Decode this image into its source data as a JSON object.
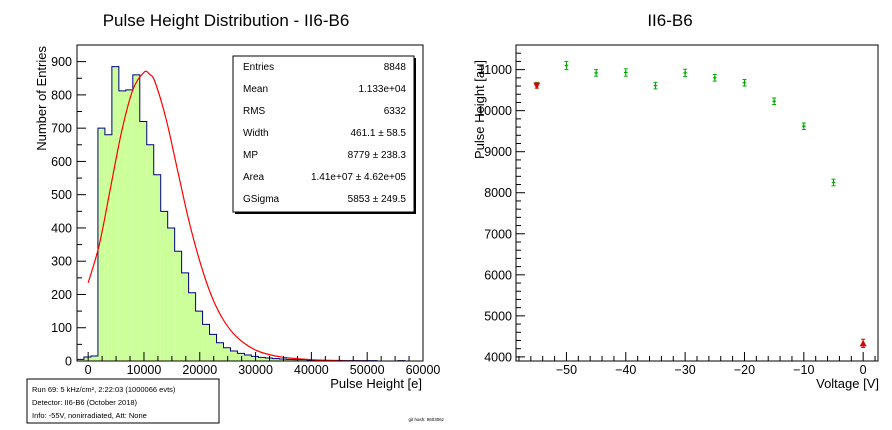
{
  "chart_data": [
    {
      "type": "bar",
      "title": "Pulse Height Distribution - II6-B6",
      "xlabel": "Pulse Height [e]",
      "ylabel": "Number of Entries",
      "xlim": [
        -2000,
        60000
      ],
      "ylim": [
        0,
        950
      ],
      "x_ticks": [
        0,
        10000,
        20000,
        30000,
        40000,
        50000,
        60000
      ],
      "y_ticks": [
        0,
        100,
        200,
        300,
        400,
        500,
        600,
        700,
        800,
        900
      ],
      "bin_width": 1250,
      "bin_start": -2000,
      "values": [
        5,
        12,
        15,
        700,
        680,
        885,
        812,
        815,
        860,
        720,
        650,
        560,
        450,
        400,
        330,
        265,
        205,
        150,
        110,
        80,
        55,
        40,
        30,
        23,
        18,
        14,
        11,
        9,
        7,
        6,
        5,
        4,
        4,
        3,
        3,
        2,
        2,
        2,
        1,
        1,
        1,
        1,
        1,
        0,
        0,
        0,
        1,
        0,
        0
      ],
      "fit": {
        "type": "langaus",
        "x": [
          0,
          2000,
          4000,
          6000,
          8000,
          10000,
          11000,
          12000,
          14000,
          16000,
          18000,
          20000,
          22000,
          24000,
          26000,
          28000,
          30000,
          32000,
          35000,
          40000,
          45000,
          50000
        ],
        "y": [
          235,
          350,
          520,
          690,
          815,
          868,
          862,
          838,
          725,
          575,
          425,
          300,
          200,
          130,
          83,
          53,
          33,
          21,
          11,
          4,
          1,
          0
        ]
      },
      "stats": [
        {
          "label": "Entries",
          "value": "8848"
        },
        {
          "label": "Mean",
          "value": "1.133e+04"
        },
        {
          "label": "RMS",
          "value": "6332"
        },
        {
          "label": "Width",
          "value": "461.1 ± 58.5"
        },
        {
          "label": "MP",
          "value": "8779 ± 238.3"
        },
        {
          "label": "Area",
          "value": "1.41e+07 ± 4.62e+05"
        },
        {
          "label": "GSigma",
          "value": "5853 ± 249.5"
        }
      ],
      "colors": {
        "fill": "#ccff99",
        "outline": "#000080",
        "fit": "#ff0000"
      }
    },
    {
      "type": "scatter",
      "title": "II6-B6",
      "xlabel": "Voltage [V]",
      "ylabel": "Pulse Height [au]",
      "xlim": [
        -58.5,
        2.5
      ],
      "ylim": [
        3900,
        11600
      ],
      "x_ticks": [
        -50,
        -40,
        -30,
        -20,
        -10,
        0
      ],
      "y_ticks": [
        4000,
        5000,
        6000,
        7000,
        8000,
        9000,
        10000,
        11000
      ],
      "series": [
        {
          "marker": "star",
          "color": "#00aa00",
          "x": [
            -55,
            -50,
            -45,
            -40,
            -35,
            -30,
            -25,
            -20,
            -15,
            -10,
            -5
          ],
          "y": [
            10620,
            11100,
            10920,
            10930,
            10610,
            10920,
            10800,
            10680,
            10230,
            9620,
            8250
          ],
          "err": [
            70,
            100,
            80,
            90,
            80,
            90,
            80,
            80,
            80,
            80,
            80
          ]
        },
        {
          "marker": "triangle-down",
          "color": "#dd0000",
          "x": [
            -55
          ],
          "y": [
            10610
          ],
          "err": [
            60
          ]
        },
        {
          "marker": "triangle-up",
          "color": "#dd0000",
          "x": [
            0
          ],
          "y": [
            4330
          ],
          "err": [
            100
          ]
        }
      ]
    }
  ],
  "info_box": {
    "run": "Run 69: 5 kHz/cm², 2:22:03 (1000066 evts)",
    "detector": "Detector: II6-B6 (October 2018)",
    "info": "Info:  -55V, nonirradiated, Att: None"
  },
  "git_hash": "git hash: 960306z"
}
